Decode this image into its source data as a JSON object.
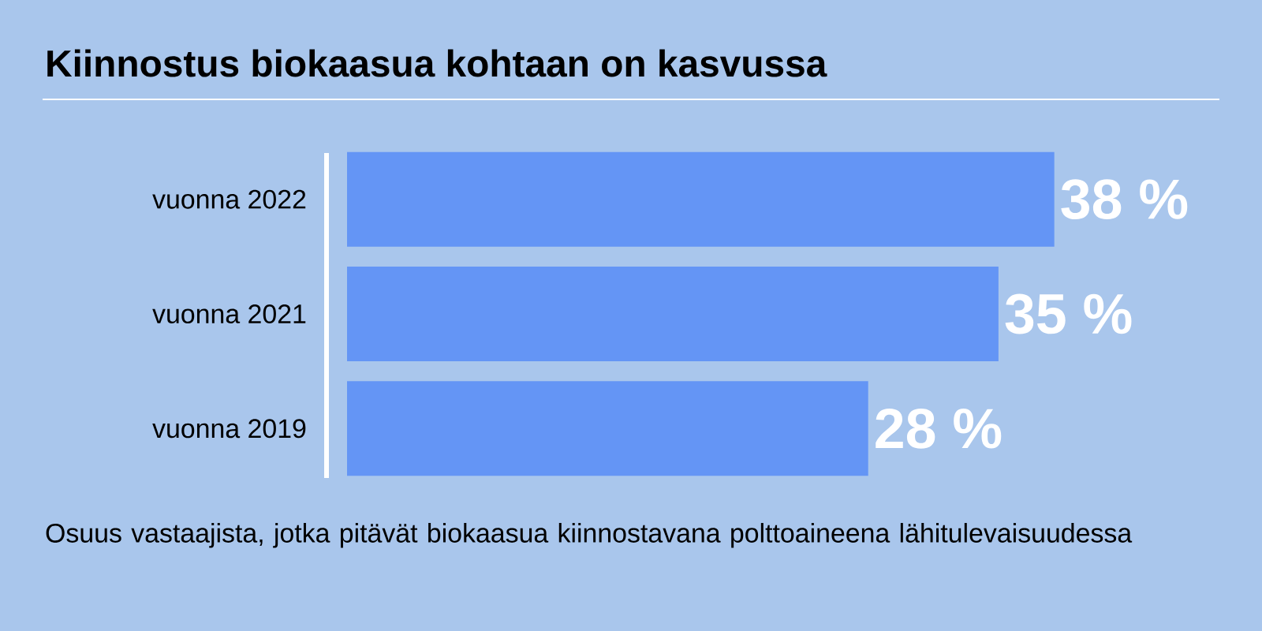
{
  "chart_data": {
    "type": "bar",
    "orientation": "horizontal",
    "title": "Kiinnostus biokaasua kohtaan on kasvussa",
    "categories": [
      "vuonna 2022",
      "vuonna 2021",
      "vuonna 2019"
    ],
    "values": [
      38,
      35,
      28
    ],
    "value_labels": [
      "38 %",
      "35 %",
      "28 %"
    ],
    "color": "#6495f5",
    "annotations": [
      "Osuus vastaajista, jotka pitävät biokaasua kiinnostavana polttoaineena lähitulevaisuudessa"
    ]
  }
}
